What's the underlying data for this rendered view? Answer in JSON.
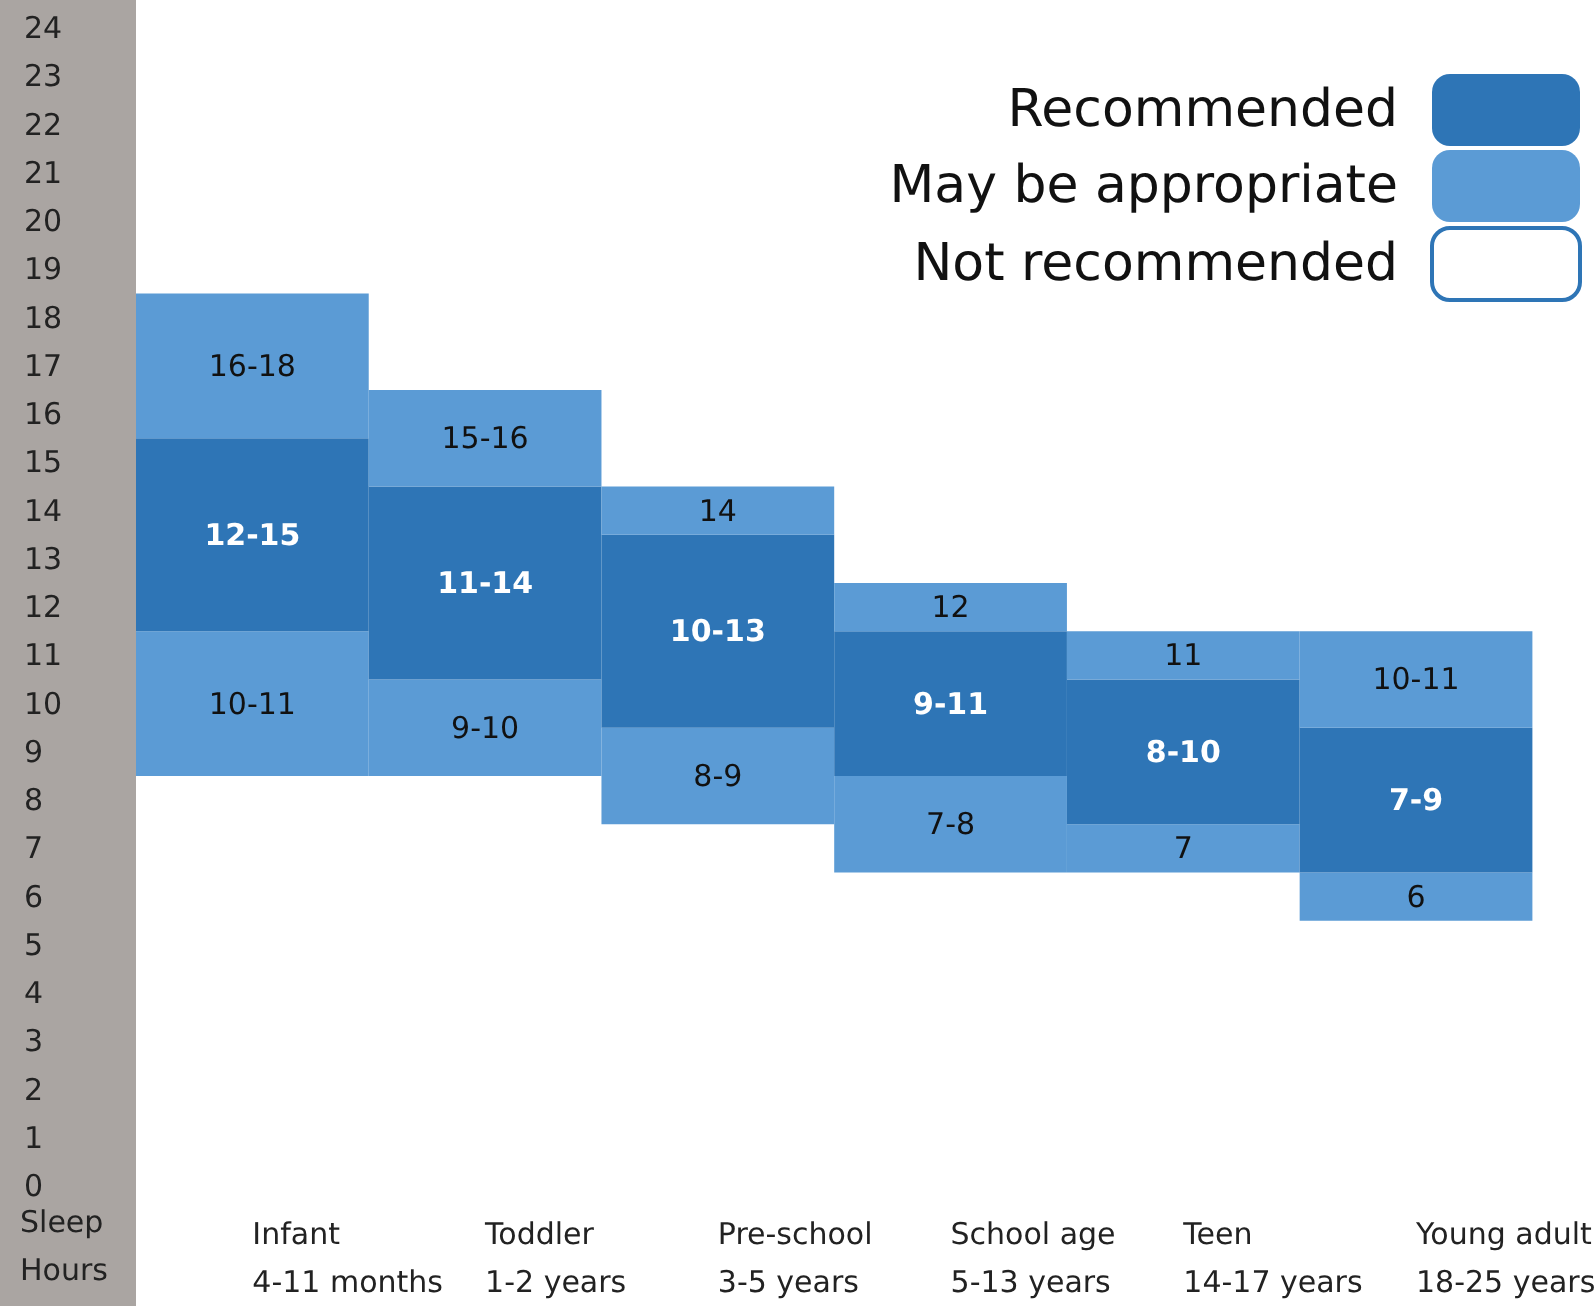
{
  "chart_data": {
    "type": "bar",
    "ylabel": "Sleep Hours",
    "categories": [
      "Infant 4-11 months",
      "Toddler 1-2 years",
      "Pre-school 3-5 years",
      "School age 5-13 years",
      "Teen 14-17 years",
      "Young adult 18-25 years"
    ],
    "series": [
      {
        "name": "May be appropriate",
        "color": "#5b9bd5",
        "base": [
          8.5,
          8.5,
          7.5,
          6.5,
          6.5,
          5.5
        ],
        "values": [
          3,
          2,
          2,
          2,
          1,
          1
        ],
        "value_labels": [
          "10-11",
          "9-10",
          "8-9",
          "7-8",
          "7",
          "6"
        ]
      },
      {
        "name": "Recommended",
        "color": "#2e75b6",
        "base": [
          11.5,
          10.5,
          9.5,
          8.5,
          7.5,
          6.5
        ],
        "values": [
          4,
          4,
          4,
          3,
          3,
          3
        ],
        "value_labels": [
          "12-15",
          "11-14",
          "10-13",
          "9-11",
          "8-10",
          "7-9"
        ]
      },
      {
        "color": "#5b9bd5",
        "base": [
          15.5,
          14.5,
          13.5,
          11.5,
          10.5,
          9.5
        ],
        "values": [
          3,
          2,
          1,
          1,
          1,
          2
        ],
        "value_labels": [
          "16-18",
          "15-16",
          "14",
          "12",
          "11",
          "10-11"
        ]
      },
      {
        "name": "Not recommended",
        "color": "#ffffff",
        "base": [
          null,
          null,
          null,
          null,
          null,
          null
        ],
        "values": [
          null,
          null,
          null,
          null,
          null,
          null
        ]
      }
    ],
    "ylim": [
      0,
      24
    ],
    "yticks": [
      0,
      1,
      2,
      3,
      4,
      5,
      6,
      7,
      8,
      9,
      10,
      11,
      12,
      13,
      14,
      15,
      16,
      17,
      18,
      19,
      20,
      21,
      22,
      23,
      24
    ],
    "grid": false,
    "legend": "top right"
  }
}
